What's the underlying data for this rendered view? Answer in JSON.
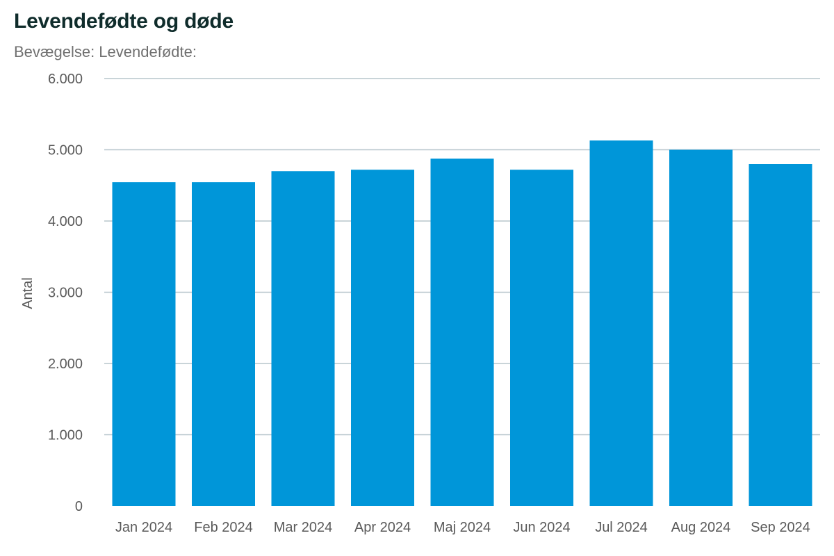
{
  "header": {
    "title": "Levendefødte og døde",
    "subtitle": "Bevægelse: Levendefødte:"
  },
  "colors": {
    "bar": "#0096d9",
    "grid": "#b7c6cc",
    "text": "#5a5a5a"
  },
  "chart_data": {
    "type": "bar",
    "title": "Levendefødte og døde",
    "subtitle": "Bevægelse: Levendefødte:",
    "xlabel": "",
    "ylabel": "Antal",
    "ylim": [
      0,
      6000
    ],
    "yticks": [
      0,
      1000,
      2000,
      3000,
      4000,
      5000,
      6000
    ],
    "ytick_labels": [
      "0",
      "1.000",
      "2.000",
      "3.000",
      "4.000",
      "5.000",
      "6.000"
    ],
    "grid": true,
    "legend": "none",
    "categories": [
      "Jan 2024",
      "Feb 2024",
      "Mar 2024",
      "Apr 2024",
      "Maj 2024",
      "Jun 2024",
      "Jul 2024",
      "Aug 2024",
      "Sep 2024"
    ],
    "values": [
      4545,
      4545,
      4700,
      4720,
      4875,
      4720,
      5130,
      5000,
      4800
    ]
  }
}
